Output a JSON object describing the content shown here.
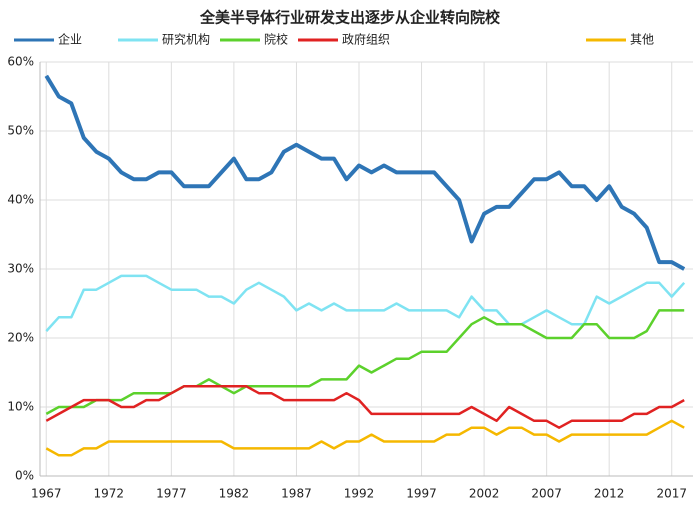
{
  "chart_data": {
    "type": "line",
    "title": "全美半导体行业研发支出逐步从企业转向院校",
    "x": [
      1967,
      1968,
      1969,
      1970,
      1971,
      1972,
      1973,
      1974,
      1975,
      1976,
      1977,
      1978,
      1979,
      1980,
      1981,
      1982,
      1983,
      1984,
      1985,
      1986,
      1987,
      1988,
      1989,
      1990,
      1991,
      1992,
      1993,
      1994,
      1995,
      1996,
      1997,
      1998,
      1999,
      2000,
      2001,
      2002,
      2003,
      2004,
      2005,
      2006,
      2007,
      2008,
      2009,
      2010,
      2011,
      2012,
      2013,
      2014,
      2015,
      2016,
      2017,
      2018
    ],
    "series": [
      {
        "name": "企业",
        "color": "#2e75b6",
        "values": [
          58,
          55,
          54,
          49,
          47,
          46,
          44,
          43,
          43,
          44,
          44,
          42,
          42,
          42,
          44,
          46,
          43,
          43,
          44,
          47,
          48,
          47,
          46,
          46,
          43,
          45,
          44,
          45,
          44,
          44,
          44,
          44,
          42,
          40,
          34,
          38,
          39,
          39,
          41,
          43,
          43,
          44,
          42,
          42,
          40,
          42,
          39,
          38,
          36,
          31,
          31,
          30
        ]
      },
      {
        "name": "研究机构",
        "color": "#7fe3f2",
        "values": [
          21,
          23,
          23,
          27,
          27,
          28,
          29,
          29,
          29,
          28,
          27,
          27,
          27,
          26,
          26,
          25,
          27,
          28,
          27,
          26,
          24,
          25,
          24,
          25,
          24,
          24,
          24,
          24,
          25,
          24,
          24,
          24,
          24,
          23,
          26,
          24,
          24,
          22,
          22,
          23,
          24,
          23,
          22,
          22,
          26,
          25,
          26,
          27,
          28,
          28,
          26,
          28
        ]
      },
      {
        "name": "院校",
        "color": "#5cd12c",
        "values": [
          9,
          10,
          10,
          10,
          11,
          11,
          11,
          12,
          12,
          12,
          12,
          13,
          13,
          14,
          13,
          12,
          13,
          13,
          13,
          13,
          13,
          13,
          14,
          14,
          14,
          16,
          15,
          16,
          17,
          17,
          18,
          18,
          18,
          20,
          22,
          23,
          22,
          22,
          22,
          21,
          20,
          20,
          20,
          22,
          22,
          20,
          20,
          20,
          21,
          24,
          24,
          24
        ]
      },
      {
        "name": "政府组织",
        "color": "#e02222",
        "values": [
          8,
          9,
          10,
          11,
          11,
          11,
          10,
          10,
          11,
          11,
          12,
          13,
          13,
          13,
          13,
          13,
          13,
          12,
          12,
          11,
          11,
          11,
          11,
          11,
          12,
          11,
          9,
          9,
          9,
          9,
          9,
          9,
          9,
          9,
          10,
          9,
          8,
          10,
          9,
          8,
          8,
          7,
          8,
          8,
          8,
          8,
          8,
          9,
          9,
          10,
          10,
          11
        ]
      },
      {
        "name": "其他",
        "color": "#f5b800",
        "values": [
          4,
          3,
          3,
          4,
          4,
          5,
          5,
          5,
          5,
          5,
          5,
          5,
          5,
          5,
          5,
          4,
          4,
          4,
          4,
          4,
          4,
          4,
          5,
          4,
          5,
          5,
          6,
          5,
          5,
          5,
          5,
          5,
          6,
          6,
          7,
          7,
          6,
          7,
          7,
          6,
          6,
          5,
          6,
          6,
          6,
          6,
          6,
          6,
          6,
          7,
          8,
          7
        ]
      }
    ],
    "xlim": [
      1966.5,
      2018.7
    ],
    "xticks": [
      1967,
      1972,
      1977,
      1982,
      1987,
      1992,
      1997,
      2002,
      2007,
      2012,
      2017
    ],
    "ylim": [
      0,
      60
    ],
    "yticks": [
      {
        "value": 0,
        "label": "0%"
      },
      {
        "value": 10,
        "label": "10%"
      },
      {
        "value": 20,
        "label": "20%"
      },
      {
        "value": 30,
        "label": "30%"
      },
      {
        "value": 40,
        "label": "40%"
      },
      {
        "value": 50,
        "label": "50%"
      },
      {
        "value": 60,
        "label": "60%"
      }
    ],
    "grid": true,
    "legend": "top"
  }
}
